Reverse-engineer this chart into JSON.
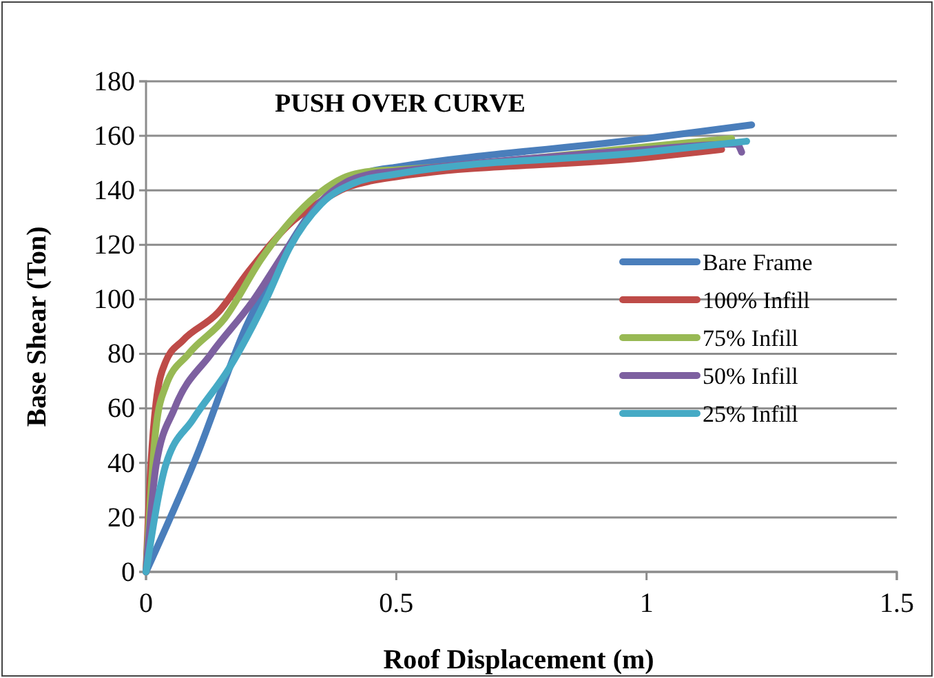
{
  "chart_data": {
    "type": "line",
    "title": "PUSH OVER CURVE",
    "xlabel": "Roof Displacement (m)",
    "ylabel": "Base Shear (Ton)",
    "xlim": [
      0,
      1.5
    ],
    "xticks": [
      0,
      0.5,
      1,
      1.5
    ],
    "ylim": [
      0,
      180
    ],
    "yticks": [
      0,
      20,
      40,
      60,
      80,
      100,
      120,
      140,
      160,
      180
    ],
    "grid": "y",
    "legend": "right",
    "marker": "none",
    "line_style": "solid",
    "series": [
      {
        "name": "Bare Frame",
        "color": "#4a7ebb",
        "x": [
          0,
          0.1,
          0.2,
          0.28,
          0.33,
          0.4,
          0.45,
          0.5,
          1,
          1.21
        ],
        "values": [
          0,
          42,
          90,
          118,
          132,
          143,
          147,
          148.5,
          159,
          164
        ]
      },
      {
        "name": "100% Infill",
        "color": "#be4b48",
        "x": [
          0,
          0.01,
          0.02,
          0.039,
          0.074,
          0.143,
          0.204,
          0.295,
          0.35,
          0.4,
          0.45,
          0.5,
          1,
          1.15
        ],
        "values": [
          0,
          40,
          62,
          77,
          85,
          95,
          110,
          129,
          136,
          141,
          143.5,
          145,
          152,
          155
        ]
      },
      {
        "name": "75% Infill",
        "color": "#98b954",
        "x": [
          0,
          0.02,
          0.039,
          0.085,
          0.157,
          0.231,
          0.305,
          0.4,
          0.45,
          0.5,
          1,
          1.17
        ],
        "values": [
          0,
          53,
          68,
          80,
          93,
          115,
          132,
          145,
          147,
          147.5,
          156,
          159
        ]
      },
      {
        "name": "50% Infill",
        "color": "#7d60a0",
        "x": [
          0,
          0.02,
          0.057,
          0.13,
          0.212,
          0.287,
          0.35,
          0.4,
          0.45,
          0.5,
          1,
          1.18,
          1.19
        ],
        "values": [
          0,
          39,
          60,
          80,
          99,
          120,
          136,
          143,
          146,
          147,
          155,
          157,
          154
        ]
      },
      {
        "name": "25% Infill",
        "color": "#46aac5",
        "x": [
          0,
          0.039,
          0.094,
          0.167,
          0.24,
          0.287,
          0.35,
          0.415,
          0.5,
          1,
          1.2
        ],
        "values": [
          0,
          39,
          56,
          75,
          100,
          119,
          135,
          142.6,
          146,
          154,
          158
        ]
      }
    ]
  }
}
